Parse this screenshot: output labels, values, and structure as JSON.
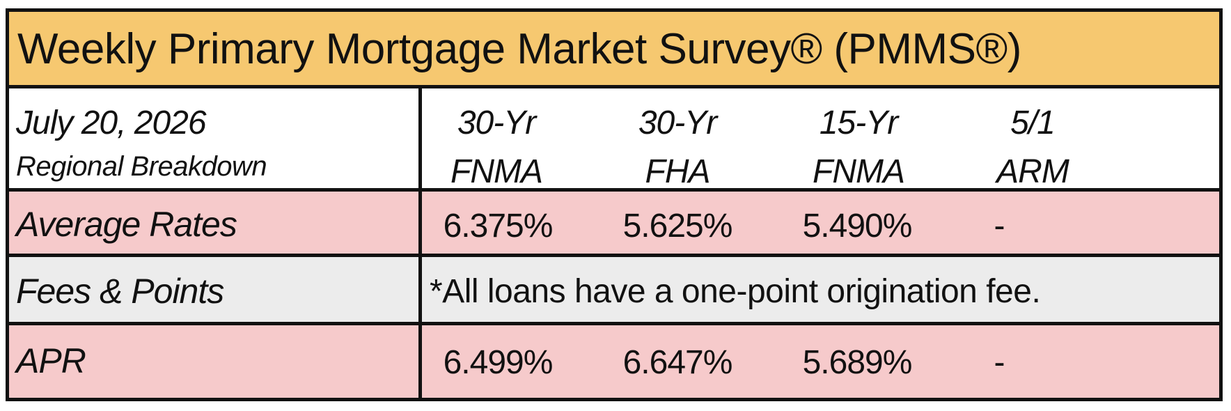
{
  "title": "Weekly Primary Mortgage Market Survey® (PMMS®)",
  "header": {
    "date": "July 20, 2026",
    "subtitle": "Regional Breakdown",
    "columns": [
      {
        "line1": "30-Yr",
        "line2": "FNMA"
      },
      {
        "line1": "30-Yr",
        "line2": "FHA"
      },
      {
        "line1": "15-Yr",
        "line2": "FNMA"
      },
      {
        "line1": "5/1",
        "line2": "ARM"
      }
    ]
  },
  "rows": {
    "average_rates": {
      "label": "Average Rates",
      "values": [
        "6.375%",
        "5.625%",
        "5.490%",
        "-"
      ]
    },
    "fees_points": {
      "label": "Fees & Points",
      "note": "*All loans have a one-point origination fee."
    },
    "apr": {
      "label": "APR",
      "values": [
        "6.499%",
        "6.647%",
        "5.689%",
        "-"
      ]
    }
  },
  "colors": {
    "title_bg": "#f6c870",
    "rate_row_bg": "#f6cacb",
    "fees_row_bg": "#ececec",
    "border": "#111111"
  }
}
